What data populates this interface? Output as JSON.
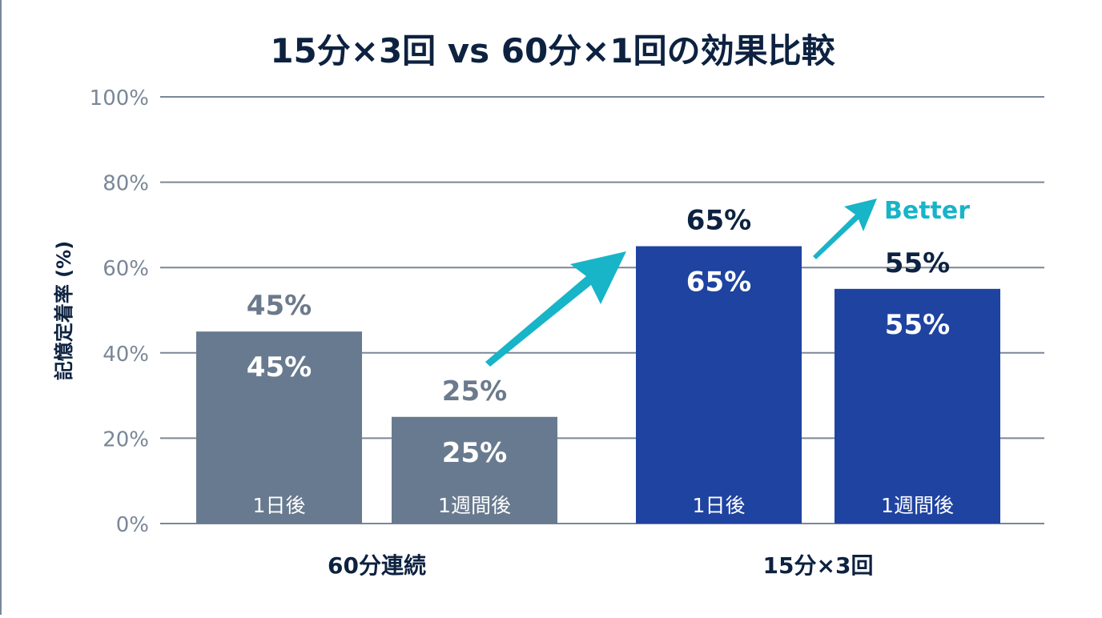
{
  "chart_data": {
    "type": "bar",
    "title": "15分×3回 vs 60分×1回の効果比較",
    "ylabel": "記憶定着率 (%)",
    "xlabel": "",
    "ylim": [
      0,
      100
    ],
    "yticks": [
      0,
      20,
      40,
      60,
      80,
      100
    ],
    "ytick_labels": [
      "0%",
      "20%",
      "40%",
      "60%",
      "80%",
      "100%"
    ],
    "grid": true,
    "groups": [
      {
        "name": "60分連続",
        "color": "#687a8f",
        "label_color": "#6b7a8c",
        "bars": [
          {
            "label": "1日後",
            "value": 45,
            "text": "45%"
          },
          {
            "label": "1週間後",
            "value": 25,
            "text": "25%"
          }
        ]
      },
      {
        "name": "15分×3回",
        "color": "#1f43a0",
        "label_color": "#0d2240",
        "bars": [
          {
            "label": "1日後",
            "value": 65,
            "text": "65%"
          },
          {
            "label": "1週間後",
            "value": 55,
            "text": "55%"
          }
        ]
      }
    ],
    "annotation": {
      "text": "Better",
      "color": "#18b4c8"
    }
  }
}
